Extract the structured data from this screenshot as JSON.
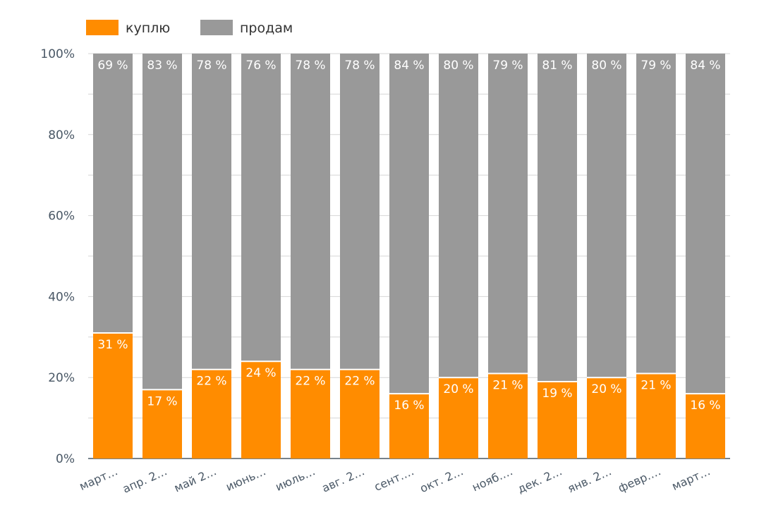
{
  "chart_data": {
    "type": "bar",
    "stacked": true,
    "percent": true,
    "categories": [
      "март…",
      "апр. 2…",
      "май 2…",
      "июнь…",
      "июль…",
      "авг. 2…",
      "сент.…",
      "окт. 2…",
      "нояб.…",
      "дек. 2…",
      "янв. 2…",
      "февр.…",
      "март…"
    ],
    "series": [
      {
        "name": "куплю",
        "color": "#ff8c00",
        "values": [
          31,
          17,
          22,
          24,
          22,
          22,
          16,
          20,
          21,
          19,
          20,
          21,
          16
        ],
        "labels": [
          "31 %",
          "17 %",
          "22 %",
          "24 %",
          "22 %",
          "22 %",
          "16 %",
          "20 %",
          "21 %",
          "19 %",
          "20 %",
          "21 %",
          "16 %"
        ]
      },
      {
        "name": "продам",
        "color": "#999999",
        "values": [
          69,
          83,
          78,
          76,
          78,
          78,
          84,
          80,
          79,
          81,
          80,
          79,
          84
        ],
        "labels": [
          "69 %",
          "83 %",
          "78 %",
          "76 %",
          "78 %",
          "78 %",
          "84 %",
          "80 %",
          "79 %",
          "81 %",
          "80 %",
          "79 %",
          "84 %"
        ]
      }
    ],
    "yticks": [
      "0%",
      "20%",
      "40%",
      "60%",
      "80%",
      "100%"
    ],
    "ylim": [
      0,
      100
    ],
    "grid": true,
    "legend": "top-left"
  }
}
